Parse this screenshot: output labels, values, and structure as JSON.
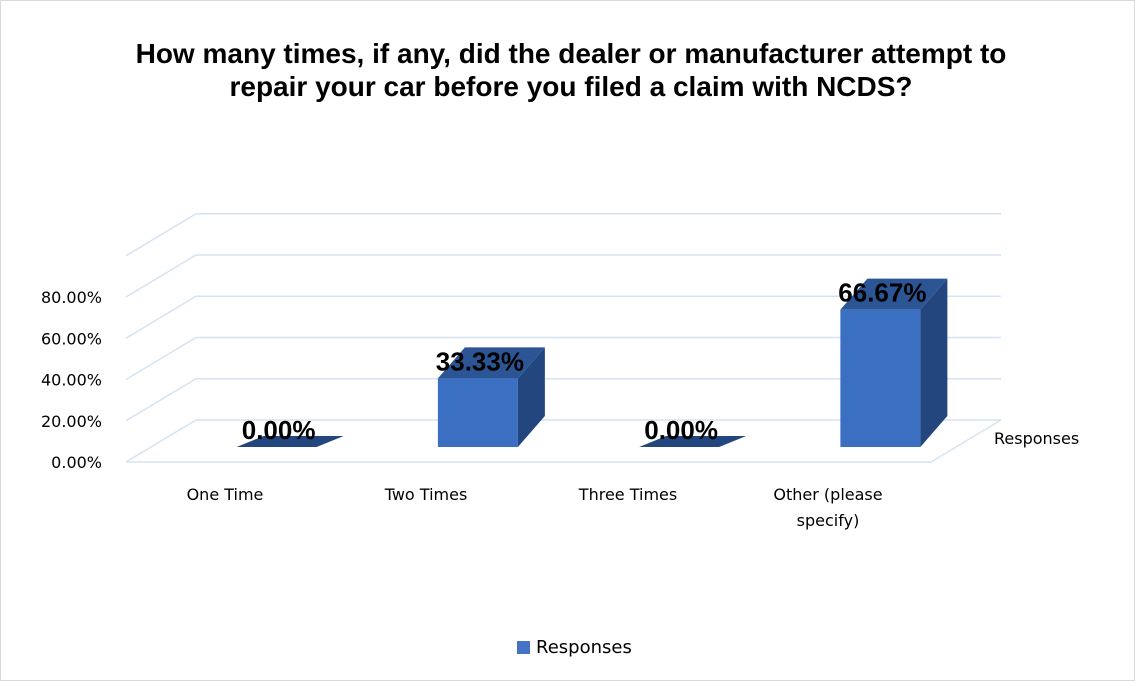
{
  "chart_data": {
    "type": "bar",
    "title": "How many times, if any, did the dealer or manufacturer attempt to repair your car before you filed a claim with NCDS?",
    "categories": [
      "One Time",
      "Two Times",
      "Three Times",
      "Other (please specify)"
    ],
    "series": [
      {
        "name": "Responses",
        "values": [
          0.0,
          33.33,
          0.0,
          66.67
        ]
      }
    ],
    "data_labels": [
      "0.00%",
      "33.33%",
      "0.00%",
      "66.67%"
    ],
    "ylim": [
      0,
      80
    ],
    "yticks": [
      "0.00%",
      "20.00%",
      "40.00%",
      "60.00%",
      "80.00%"
    ],
    "depth_axis_label": "Responses",
    "legend_position": "bottom",
    "grid": true,
    "three_d": true,
    "colors": {
      "bar_front": "#3a6fc1",
      "bar_side": "#24467f",
      "bar_top": "#2c5596",
      "grid": "#d5e3f3"
    }
  }
}
